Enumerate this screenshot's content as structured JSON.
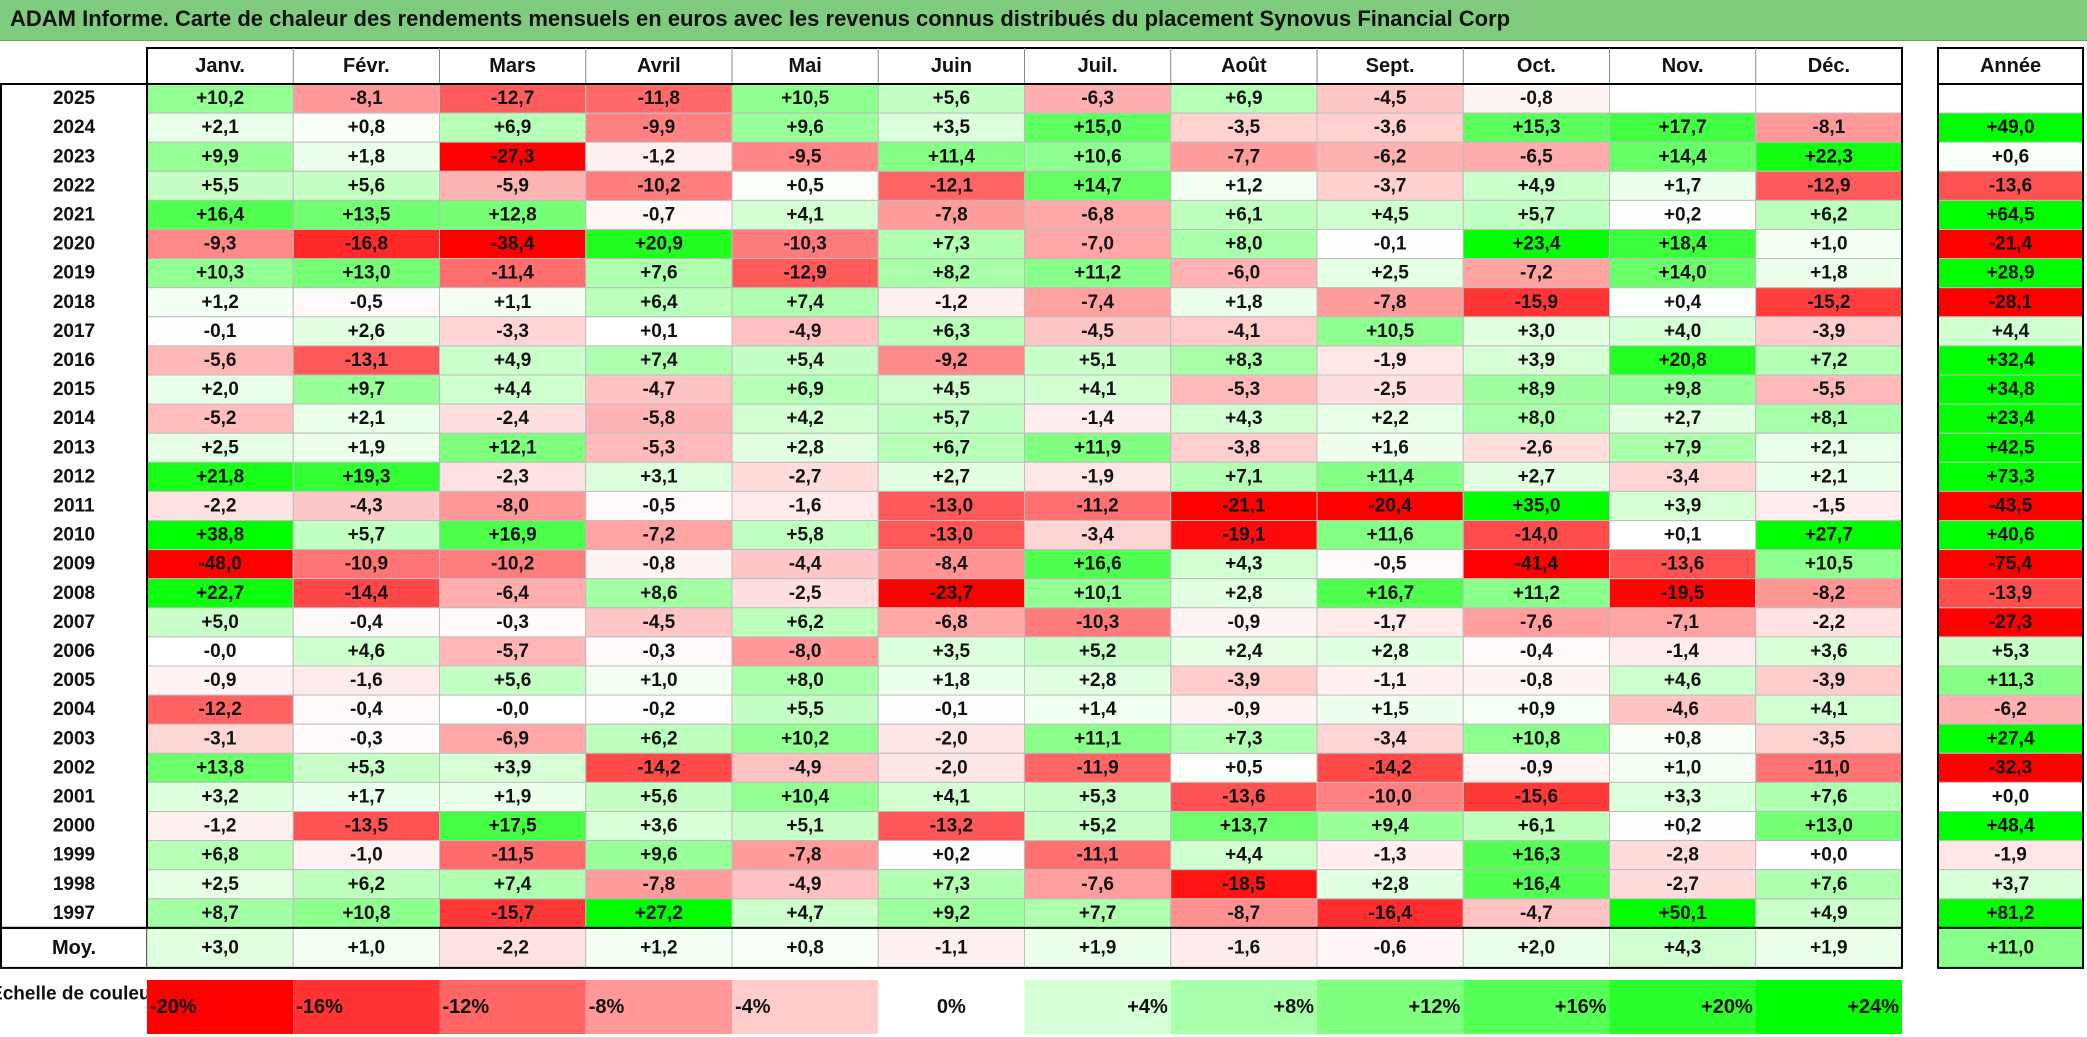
{
  "title": "ADAM Informe. Carte de chaleur des rendements mensuels en euros avec les revenus connus distribués du placement Synovus Financial Corp",
  "chart_data": {
    "type": "heatmap",
    "columns": [
      "Janv.",
      "Févr.",
      "Mars",
      "Avril",
      "Mai",
      "Juin",
      "Juil.",
      "Août",
      "Sept.",
      "Oct.",
      "Nov.",
      "Déc."
    ],
    "year_column_label": "Année",
    "average_row_label": "Moy.",
    "rows": [
      {
        "year": "2025",
        "values": [
          10.2,
          -8.1,
          -12.7,
          -11.8,
          10.5,
          5.6,
          -6.3,
          6.9,
          -4.5,
          -0.8,
          null,
          null
        ],
        "annual": null
      },
      {
        "year": "2024",
        "values": [
          2.1,
          0.8,
          6.9,
          -9.9,
          9.6,
          3.5,
          15.0,
          -3.5,
          -3.6,
          15.3,
          17.7,
          -8.1
        ],
        "annual": 49.0
      },
      {
        "year": "2023",
        "values": [
          9.9,
          1.8,
          -27.3,
          -1.2,
          -9.5,
          11.4,
          10.6,
          -7.7,
          -6.2,
          -6.5,
          14.4,
          22.3
        ],
        "annual": 0.6
      },
      {
        "year": "2022",
        "values": [
          5.5,
          5.6,
          -5.9,
          -10.2,
          0.5,
          -12.1,
          14.7,
          1.2,
          -3.7,
          4.9,
          1.7,
          -12.9
        ],
        "annual": -13.6
      },
      {
        "year": "2021",
        "values": [
          16.4,
          13.5,
          12.8,
          -0.7,
          4.1,
          -7.8,
          -6.8,
          6.1,
          4.5,
          5.7,
          0.2,
          6.2
        ],
        "annual": 64.5
      },
      {
        "year": "2020",
        "values": [
          -9.3,
          -16.8,
          -38.4,
          20.9,
          -10.3,
          7.3,
          -7.0,
          8.0,
          -0.1,
          23.4,
          18.4,
          1.0
        ],
        "annual": -21.4
      },
      {
        "year": "2019",
        "values": [
          10.3,
          13.0,
          -11.4,
          7.6,
          -12.9,
          8.2,
          11.2,
          -6.0,
          2.5,
          -7.2,
          14.0,
          1.8
        ],
        "annual": 28.9
      },
      {
        "year": "2018",
        "values": [
          1.2,
          -0.5,
          1.1,
          6.4,
          7.4,
          -1.2,
          -7.4,
          1.8,
          -7.8,
          -15.9,
          0.4,
          -15.2
        ],
        "annual": -28.1
      },
      {
        "year": "2017",
        "values": [
          -0.1,
          2.6,
          -3.3,
          0.1,
          -4.9,
          6.3,
          -4.5,
          -4.1,
          10.5,
          3.0,
          4.0,
          -3.9
        ],
        "annual": 4.4
      },
      {
        "year": "2016",
        "values": [
          -5.6,
          -13.1,
          4.9,
          7.4,
          5.4,
          -9.2,
          5.1,
          8.3,
          -1.9,
          3.9,
          20.8,
          7.2
        ],
        "annual": 32.4
      },
      {
        "year": "2015",
        "values": [
          2.0,
          9.7,
          4.4,
          -4.7,
          6.9,
          4.5,
          4.1,
          -5.3,
          -2.5,
          8.9,
          9.8,
          -5.5
        ],
        "annual": 34.8
      },
      {
        "year": "2014",
        "values": [
          -5.2,
          2.1,
          -2.4,
          -5.8,
          4.2,
          5.7,
          -1.4,
          4.3,
          2.2,
          8.0,
          2.7,
          8.1
        ],
        "annual": 23.4
      },
      {
        "year": "2013",
        "values": [
          2.5,
          1.9,
          12.1,
          -5.3,
          2.8,
          6.7,
          11.9,
          -3.8,
          1.6,
          -2.6,
          7.9,
          2.1
        ],
        "annual": 42.5
      },
      {
        "year": "2012",
        "values": [
          21.8,
          19.3,
          -2.3,
          3.1,
          -2.7,
          2.7,
          -1.9,
          7.1,
          11.4,
          2.7,
          -3.4,
          2.1
        ],
        "annual": 73.3
      },
      {
        "year": "2011",
        "values": [
          -2.2,
          -4.3,
          -8.0,
          -0.5,
          -1.6,
          -13.0,
          -11.2,
          -21.1,
          -20.4,
          35.0,
          3.9,
          -1.5
        ],
        "annual": -43.5
      },
      {
        "year": "2010",
        "values": [
          38.8,
          5.7,
          16.9,
          -7.2,
          5.8,
          -13.0,
          -3.4,
          -19.1,
          11.6,
          -14.0,
          0.1,
          27.7
        ],
        "annual": 40.6
      },
      {
        "year": "2009",
        "values": [
          -48.0,
          -10.9,
          -10.2,
          -0.8,
          -4.4,
          -8.4,
          16.6,
          4.3,
          -0.5,
          -41.4,
          -13.6,
          10.5
        ],
        "annual": -75.4
      },
      {
        "year": "2008",
        "values": [
          22.7,
          -14.4,
          -6.4,
          8.6,
          -2.5,
          -23.7,
          10.1,
          2.8,
          16.7,
          11.2,
          -19.5,
          -8.2
        ],
        "annual": -13.9
      },
      {
        "year": "2007",
        "values": [
          5.0,
          -0.4,
          -0.3,
          -4.5,
          6.2,
          -6.8,
          -10.3,
          -0.9,
          -1.7,
          -7.6,
          -7.1,
          -2.2
        ],
        "annual": -27.3
      },
      {
        "year": "2006",
        "values": [
          -0.0,
          4.6,
          -5.7,
          -0.3,
          -8.0,
          3.5,
          5.2,
          2.4,
          2.8,
          -0.4,
          -1.4,
          3.6
        ],
        "annual": 5.3
      },
      {
        "year": "2005",
        "values": [
          -0.9,
          -1.6,
          5.6,
          1.0,
          8.0,
          1.8,
          2.8,
          -3.9,
          -1.1,
          -0.8,
          4.6,
          -3.9
        ],
        "annual": 11.3
      },
      {
        "year": "2004",
        "values": [
          -12.2,
          -0.4,
          -0.0,
          -0.2,
          5.5,
          -0.1,
          1.4,
          -0.9,
          1.5,
          0.9,
          -4.6,
          4.1
        ],
        "annual": -6.2
      },
      {
        "year": "2003",
        "values": [
          -3.1,
          -0.3,
          -6.9,
          6.2,
          10.2,
          -2.0,
          11.1,
          7.3,
          -3.4,
          10.8,
          0.8,
          -3.5
        ],
        "annual": 27.4
      },
      {
        "year": "2002",
        "values": [
          13.8,
          5.3,
          3.9,
          -14.2,
          -4.9,
          -2.0,
          -11.9,
          0.5,
          -14.2,
          -0.9,
          1.0,
          -11.0
        ],
        "annual": -32.3
      },
      {
        "year": "2001",
        "values": [
          3.2,
          1.7,
          1.9,
          5.6,
          10.4,
          4.1,
          5.3,
          -13.6,
          -10.0,
          -15.6,
          3.3,
          7.6
        ],
        "annual": 0.0
      },
      {
        "year": "2000",
        "values": [
          -1.2,
          -13.5,
          17.5,
          3.6,
          5.1,
          -13.2,
          5.2,
          13.7,
          9.4,
          6.1,
          0.2,
          13.0
        ],
        "annual": 48.4
      },
      {
        "year": "1999",
        "values": [
          6.8,
          -1.0,
          -11.5,
          9.6,
          -7.8,
          0.2,
          -11.1,
          4.4,
          -1.3,
          16.3,
          -2.8,
          0.0
        ],
        "annual": -1.9
      },
      {
        "year": "1998",
        "values": [
          2.5,
          6.2,
          7.4,
          -7.8,
          -4.9,
          7.3,
          -7.6,
          -18.5,
          2.8,
          16.4,
          -2.7,
          7.6
        ],
        "annual": 3.7
      },
      {
        "year": "1997",
        "values": [
          8.7,
          10.8,
          -15.7,
          27.2,
          4.7,
          9.2,
          7.7,
          -8.7,
          -16.4,
          -4.7,
          50.1,
          4.9
        ],
        "annual": 81.2
      }
    ],
    "averages": [
      3.0,
      1.0,
      -2.2,
      1.2,
      0.8,
      -1.1,
      1.9,
      -1.6,
      -0.6,
      2.0,
      4.3,
      1.9
    ],
    "average_annual": 11.0,
    "scale_label": "Echelle de couleur",
    "scale": [
      {
        "value": -20,
        "label": "-20%"
      },
      {
        "value": -16,
        "label": "-16%"
      },
      {
        "value": -12,
        "label": "-12%"
      },
      {
        "value": -8,
        "label": "-8%"
      },
      {
        "value": -4,
        "label": "-4%"
      },
      {
        "value": 0,
        "label": "0%"
      },
      {
        "value": 4,
        "label": "+4%"
      },
      {
        "value": 8,
        "label": "+8%"
      },
      {
        "value": 12,
        "label": "+12%"
      },
      {
        "value": 16,
        "label": "+16%"
      },
      {
        "value": 20,
        "label": "+20%"
      },
      {
        "value": 24,
        "label": "+24%"
      }
    ],
    "colors": {
      "negative_max": "#ff0000",
      "positive_max": "#00ff00",
      "neutral": "#ffffff"
    }
  }
}
